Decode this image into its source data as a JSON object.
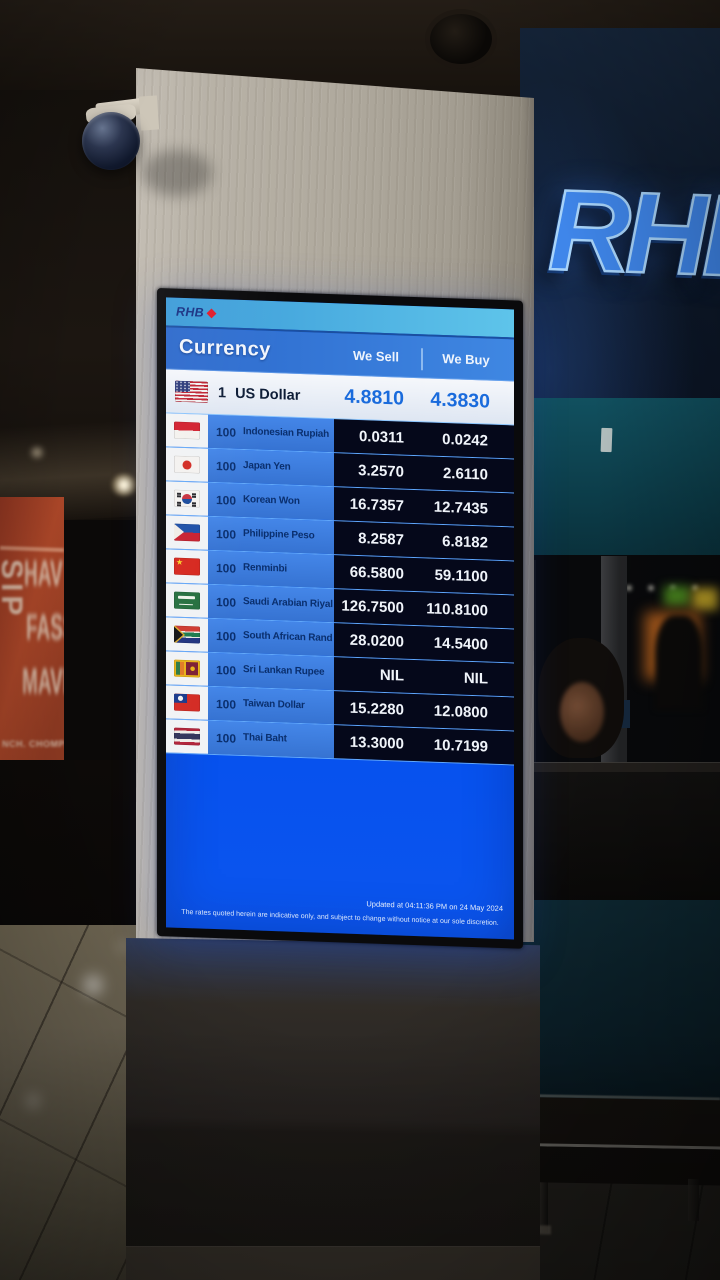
{
  "scene": {
    "sign_text": "RHB",
    "mural": {
      "vertical_word": "SIP",
      "lines": [
        "HAV",
        "FASS",
        "MAVE"
      ],
      "bottom_line": "NCH. CHOMP. C"
    }
  },
  "display": {
    "logo": {
      "text": "RHB"
    },
    "header": {
      "currency": "Currency",
      "sell": "We Sell",
      "buy": "We Buy"
    },
    "base_row": {
      "unit": "1",
      "name": "US Dollar",
      "sell": "4.8810",
      "buy": "4.3830",
      "flag": "us-flag-icon"
    },
    "rows": [
      {
        "unit": "100",
        "name": "Indonesian Rupiah",
        "sell": "0.0311",
        "buy": "0.0242",
        "flag": "indonesia-flag-icon"
      },
      {
        "unit": "100",
        "name": "Japan Yen",
        "sell": "3.2570",
        "buy": "2.6110",
        "flag": "japan-flag-icon"
      },
      {
        "unit": "100",
        "name": "Korean Won",
        "sell": "16.7357",
        "buy": "12.7435",
        "flag": "south-korea-flag-icon"
      },
      {
        "unit": "100",
        "name": "Philippine Peso",
        "sell": "8.2587",
        "buy": "6.8182",
        "flag": "philippines-flag-icon"
      },
      {
        "unit": "100",
        "name": "Renminbi",
        "sell": "66.5800",
        "buy": "59.1100",
        "flag": "china-flag-icon"
      },
      {
        "unit": "100",
        "name": "Saudi Arabian Riyal",
        "sell": "126.7500",
        "buy": "110.8100",
        "flag": "saudi-arabia-flag-icon"
      },
      {
        "unit": "100",
        "name": "South African Rand",
        "sell": "28.0200",
        "buy": "14.5400",
        "flag": "south-africa-flag-icon"
      },
      {
        "unit": "100",
        "name": "Sri Lankan Rupee",
        "sell": "NIL",
        "buy": "NIL",
        "flag": "sri-lanka-flag-icon"
      },
      {
        "unit": "100",
        "name": "Taiwan Dollar",
        "sell": "15.2280",
        "buy": "12.0800",
        "flag": "taiwan-flag-icon"
      },
      {
        "unit": "100",
        "name": "Thai Baht",
        "sell": "13.3000",
        "buy": "10.7199",
        "flag": "thailand-flag-icon"
      }
    ],
    "footer": {
      "updated": "Updated at 04:11:36 PM on 24 May 2024",
      "disclaimer": "The rates quoted herein are indicative only, and subject to change without notice at our sole discretion."
    },
    "colors": {
      "screen_blue": "#0551f0",
      "logo_bar_blue": "#45a7e6",
      "header_blue": "#2e6ed2",
      "label_cell_blue": "#3b7ade",
      "value_cell_navy": "#05081a",
      "us_row_light": "#e8edf6",
      "us_value_blue": "#1a6bdc",
      "navy_text": "#0a2f6e",
      "logo_diamond_red": "#e01a2a"
    }
  }
}
